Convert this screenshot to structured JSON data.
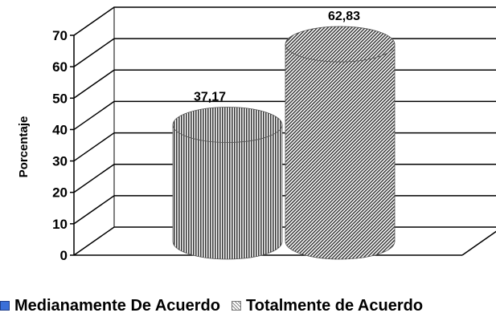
{
  "chart_data": {
    "type": "bar",
    "style": "3d-cylinder",
    "ylabel": "Porcentaje",
    "ylim": [
      0,
      70
    ],
    "yticks": [
      "0",
      "10",
      "20",
      "30",
      "40",
      "50",
      "60",
      "70"
    ],
    "grid": true,
    "legend_position": "bottom",
    "series": [
      {
        "name": "Medianamente De Acuerdo",
        "value": 37.17,
        "label": "37,17",
        "color": "#3a6fd8"
      },
      {
        "name": "Totalmente de Acuerdo",
        "value": 62.83,
        "label": "62,83",
        "color": "#9a9a9a"
      }
    ]
  }
}
